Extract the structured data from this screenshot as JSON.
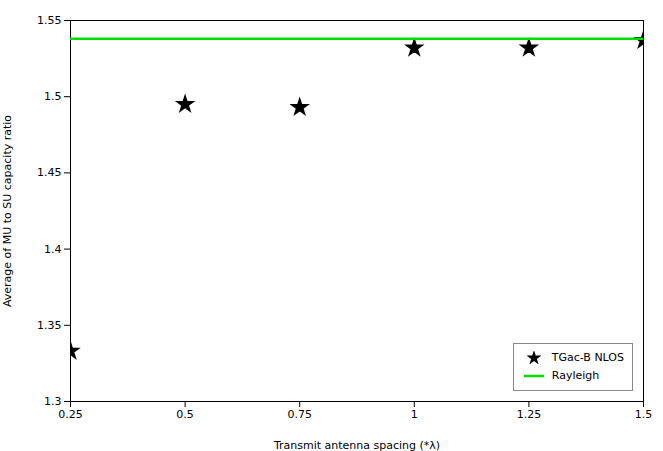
{
  "chart_data": {
    "type": "scatter",
    "xlabel": "Transmit antenna spacing (*λ)",
    "ylabel": "Average of MU to SU capacity ratio",
    "series": [
      {
        "name": "TGac-B NLOS",
        "type": "scatter",
        "marker": "star",
        "color": "#000000",
        "x": [
          0.25,
          0.5,
          0.75,
          1,
          1.25,
          1.5
        ],
        "values": [
          1.333,
          1.495,
          1.493,
          1.532,
          1.532,
          1.537
        ]
      },
      {
        "name": "Rayleigh",
        "type": "line",
        "color": "#00dd00",
        "x": [
          0.25,
          1.5
        ],
        "values": [
          1.538,
          1.538
        ]
      }
    ],
    "xlim": [
      0.25,
      1.5
    ],
    "ylim": [
      1.3,
      1.55
    ],
    "xticks": [
      0.25,
      0.5,
      0.75,
      1,
      1.25,
      1.5
    ],
    "yticks": [
      1.3,
      1.35,
      1.4,
      1.45,
      1.5,
      1.55
    ],
    "grid": false,
    "legend": "lower right"
  }
}
